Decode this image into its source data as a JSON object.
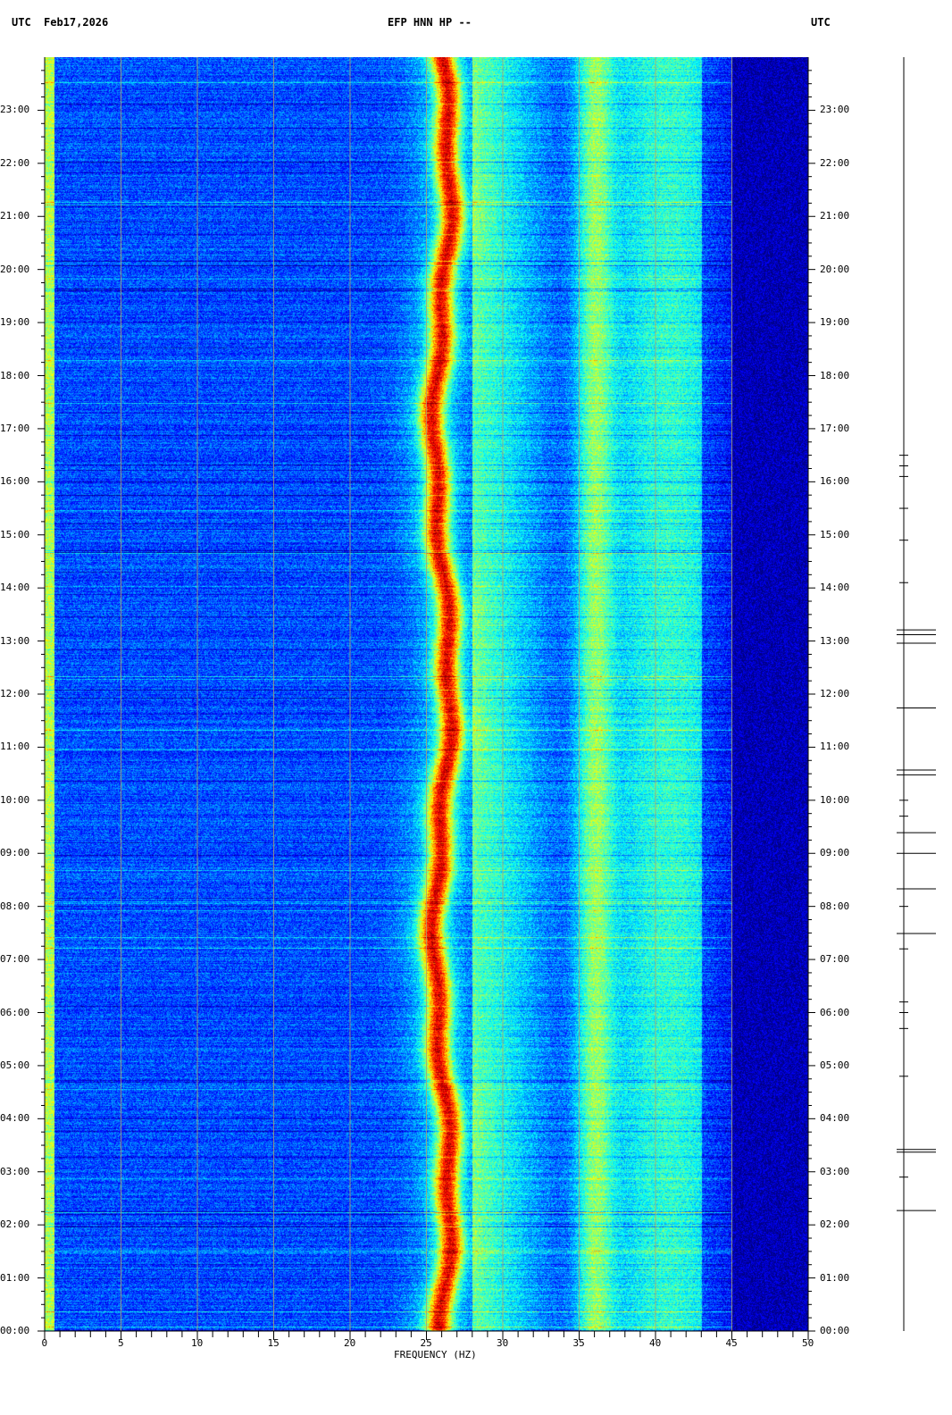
{
  "header": {
    "left_utc": "UTC",
    "date": "Feb17,2026",
    "station": "EFP HNN HP --",
    "right_utc": "UTC"
  },
  "chart_data": {
    "type": "heatmap",
    "title": "EFP HNN HP --",
    "xlabel": "FREQUENCY (HZ)",
    "ylabel": "",
    "xlim": [
      0,
      50
    ],
    "ylim_hours": [
      0,
      24
    ],
    "x_ticks": [
      "0",
      "5",
      "10",
      "15",
      "20",
      "25",
      "30",
      "35",
      "40",
      "45",
      "50"
    ],
    "y_ticks": [
      "00:00",
      "01:00",
      "02:00",
      "03:00",
      "04:00",
      "05:00",
      "06:00",
      "07:00",
      "08:00",
      "09:00",
      "10:00",
      "11:00",
      "12:00",
      "13:00",
      "14:00",
      "15:00",
      "16:00",
      "17:00",
      "18:00",
      "19:00",
      "20:00",
      "21:00",
      "22:00",
      "23:00"
    ],
    "colormap": "jet",
    "grid": "vertical lines every 5 Hz",
    "features": {
      "dominant_band_hz": [
        25,
        27
      ],
      "secondary_band_hz": [
        35,
        37
      ],
      "broadband_energy_hz": [
        28,
        43
      ],
      "low_energy_above_hz": 45
    },
    "trace_events_hours": [
      13.21,
      13.12,
      12.96,
      11.74,
      10.57,
      10.48,
      9.39,
      9.0,
      8.33,
      7.49,
      3.42,
      3.37,
      2.27
    ],
    "trace_minor_events_hours": [
      16.5,
      16.3,
      16.1,
      15.5,
      14.9,
      14.1,
      10.0,
      9.7,
      8.0,
      7.2,
      6.2,
      6.0,
      5.7,
      4.8,
      2.9
    ]
  }
}
